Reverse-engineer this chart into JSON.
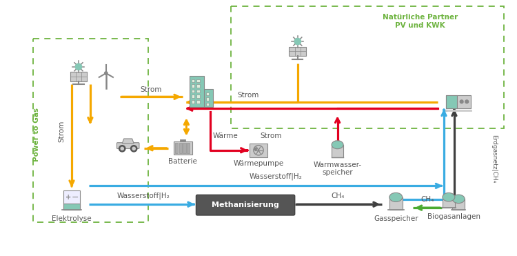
{
  "bg_color": "#ffffff",
  "green_color": "#6db33f",
  "yellow": "#f5a800",
  "red": "#e20020",
  "blue": "#3aace2",
  "dark": "#404040",
  "green_arrow": "#4aaa30",
  "gray": "#888888",
  "teal": "#85c8b5",
  "light_gray": "#cccccc",
  "dark_gray": "#555555",
  "text_col": "#555555",
  "labels": {
    "power_to_gas": "Power to Gas",
    "strom1": "Strom",
    "strom2": "Strom",
    "strom3": "Strom",
    "waerme": "Wärme",
    "strom_mid": "Strom",
    "wasserstoff_top": "Wasserstoff|H₂",
    "wasserstoff_bot": "Wasserstoff|H₂",
    "ch4": "CH₄",
    "ch4_bio": "CH₄",
    "methanisierung": "Methanisierung",
    "elektrolyse": "Elektrolyse",
    "batterie": "Batterie",
    "waermepumpe": "Wärmepumpe",
    "warmwasser": "Warmwasser-\nspeicher",
    "gasspeicher": "Gasspeicher",
    "biogasanlagen": "Biogasanlagen",
    "erdgasnetz": "Erdgasnetz|CH₄",
    "natuerliche_partner": "Natürliche Partner\nPV und KWK"
  },
  "fs": 7.5,
  "fs_small": 6.5,
  "fs_green": 7.5
}
